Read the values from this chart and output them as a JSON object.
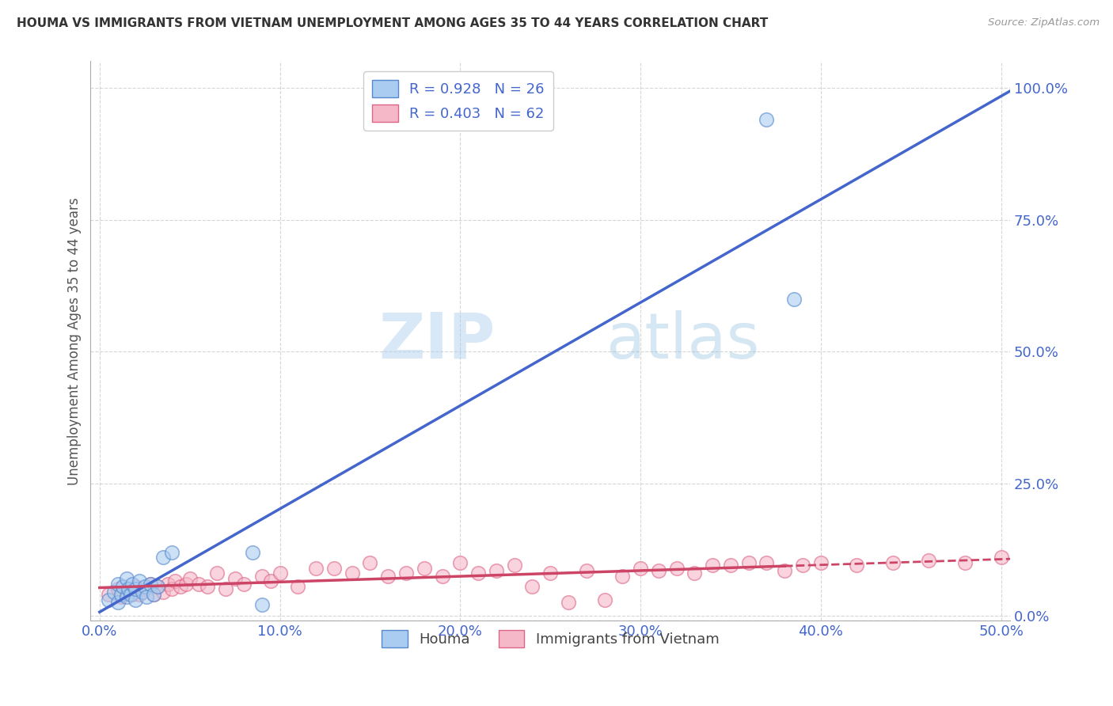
{
  "title": "HOUMA VS IMMIGRANTS FROM VIETNAM UNEMPLOYMENT AMONG AGES 35 TO 44 YEARS CORRELATION CHART",
  "source": "Source: ZipAtlas.com",
  "ylabel_label": "Unemployment Among Ages 35 to 44 years",
  "watermark_zip": "ZIP",
  "watermark_atlas": "atlas",
  "legend_label1": "R = 0.928   N = 26",
  "legend_label2": "R = 0.403   N = 62",
  "legend_bottom_label1": "Houma",
  "legend_bottom_label2": "Immigrants from Vietnam",
  "color_blue_fill": "#aaccf0",
  "color_pink_fill": "#f5b8c8",
  "color_blue_edge": "#5588cc",
  "color_pink_edge": "#dd6688",
  "color_blue_line": "#4466cc",
  "color_pink_line": "#cc4466",
  "color_title": "#333333",
  "color_axis_text": "#4466cc",
  "houma_x": [
    0.005,
    0.008,
    0.01,
    0.01,
    0.012,
    0.013,
    0.015,
    0.015,
    0.016,
    0.017,
    0.018,
    0.02,
    0.02,
    0.022,
    0.024,
    0.025,
    0.026,
    0.028,
    0.03,
    0.032,
    0.035,
    0.04,
    0.085,
    0.09,
    0.37,
    0.385
  ],
  "houma_y": [
    0.03,
    0.045,
    0.025,
    0.06,
    0.04,
    0.055,
    0.035,
    0.07,
    0.05,
    0.04,
    0.06,
    0.03,
    0.05,
    0.065,
    0.045,
    0.055,
    0.035,
    0.06,
    0.04,
    0.055,
    0.11,
    0.12,
    0.12,
    0.02,
    0.94,
    0.6
  ],
  "vietnam_x": [
    0.005,
    0.01,
    0.012,
    0.015,
    0.018,
    0.02,
    0.022,
    0.025,
    0.028,
    0.03,
    0.032,
    0.035,
    0.038,
    0.04,
    0.042,
    0.045,
    0.048,
    0.05,
    0.055,
    0.06,
    0.065,
    0.07,
    0.075,
    0.08,
    0.09,
    0.095,
    0.1,
    0.11,
    0.12,
    0.13,
    0.14,
    0.15,
    0.16,
    0.17,
    0.18,
    0.19,
    0.2,
    0.21,
    0.22,
    0.23,
    0.24,
    0.25,
    0.26,
    0.27,
    0.28,
    0.29,
    0.3,
    0.31,
    0.32,
    0.33,
    0.34,
    0.35,
    0.36,
    0.37,
    0.38,
    0.39,
    0.4,
    0.42,
    0.44,
    0.46,
    0.48,
    0.5
  ],
  "vietnam_y": [
    0.04,
    0.05,
    0.035,
    0.045,
    0.04,
    0.055,
    0.04,
    0.05,
    0.06,
    0.04,
    0.055,
    0.045,
    0.06,
    0.05,
    0.065,
    0.055,
    0.06,
    0.07,
    0.06,
    0.055,
    0.08,
    0.05,
    0.07,
    0.06,
    0.075,
    0.065,
    0.08,
    0.055,
    0.09,
    0.09,
    0.08,
    0.1,
    0.075,
    0.08,
    0.09,
    0.075,
    0.1,
    0.08,
    0.085,
    0.095,
    0.055,
    0.08,
    0.025,
    0.085,
    0.03,
    0.075,
    0.09,
    0.085,
    0.09,
    0.08,
    0.095,
    0.095,
    0.1,
    0.1,
    0.085,
    0.095,
    0.1,
    0.095,
    0.1,
    0.105,
    0.1,
    0.11
  ],
  "xlim": [
    -0.005,
    0.505
  ],
  "ylim": [
    -0.01,
    1.05
  ],
  "x_ticks": [
    0.0,
    0.1,
    0.2,
    0.3,
    0.4,
    0.5
  ],
  "y_ticks": [
    0.0,
    0.25,
    0.5,
    0.75,
    1.0
  ]
}
